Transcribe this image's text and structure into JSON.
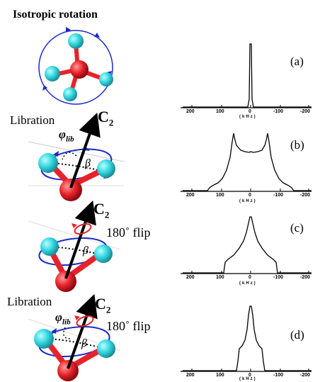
{
  "left": {
    "isotropic_title": "Isotropic rotation",
    "libration_b": "Libration",
    "libration_d": "Libration",
    "c2": "C",
    "c2_sub": "2",
    "phi": "φ",
    "phi_sub": "lib",
    "beta": "β",
    "flip_c": "180˚  flip",
    "flip_d": "180˚  flip"
  },
  "right": {
    "panels": [
      {
        "id": "a",
        "label": "(a)",
        "ticks": [
          "200",
          "100",
          "0",
          "-100",
          "-200"
        ],
        "unit": "(kHz)"
      },
      {
        "id": "b",
        "label": "(b)",
        "ticks": [
          "200",
          "100",
          "0",
          "-100",
          "-200"
        ],
        "unit": "(kHz)"
      },
      {
        "id": "c",
        "label": "(c)",
        "ticks": [
          "200",
          "100",
          "0",
          "-100",
          "-200"
        ],
        "unit": "(kHz)"
      },
      {
        "id": "d",
        "label": "(d)",
        "ticks": [
          "200",
          "100",
          "0",
          "-100",
          "-200"
        ],
        "unit": "(kHz)"
      }
    ]
  }
}
